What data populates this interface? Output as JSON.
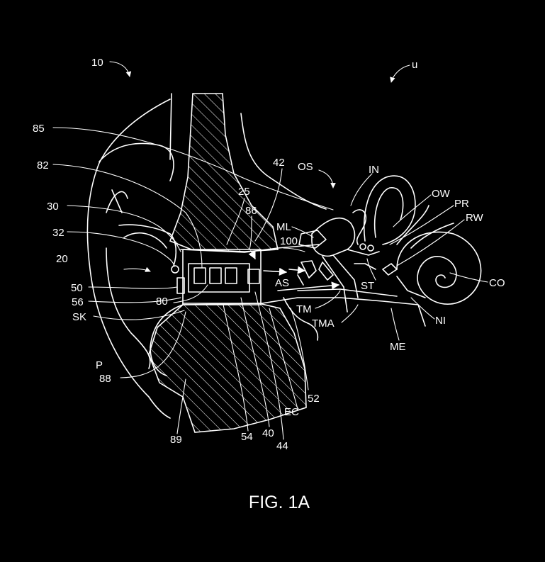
{
  "figure": {
    "caption": "FIG. 1A",
    "labels": {
      "ref_10": "10",
      "ref_u": "u",
      "ref_85": "85",
      "ref_82": "82",
      "ref_42": "42",
      "ref_os": "OS",
      "ref_in": "IN",
      "ref_25": "25",
      "ref_ow": "OW",
      "ref_pr": "PR",
      "ref_rw": "RW",
      "ref_30": "30",
      "ref_86": "86",
      "ref_ml": "ML",
      "ref_32": "32",
      "ref_100": "100",
      "ref_20": "20",
      "ref_as": "AS",
      "ref_st": "ST",
      "ref_co": "CO",
      "ref_50": "50",
      "ref_56": "56",
      "ref_80": "80",
      "ref_tm": "TM",
      "ref_sk": "SK",
      "ref_tma": "TMA",
      "ref_ni": "NI",
      "ref_me": "ME",
      "ref_p": "P",
      "ref_88": "88",
      "ref_52": "52",
      "ref_ec": "EC",
      "ref_89": "89",
      "ref_54": "54",
      "ref_40": "40",
      "ref_44": "44"
    }
  }
}
